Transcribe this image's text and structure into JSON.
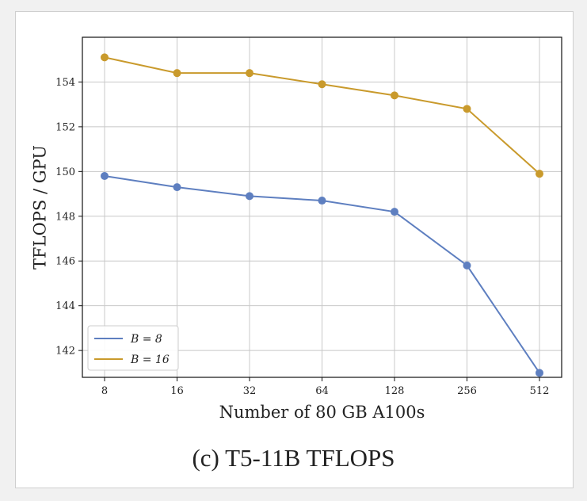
{
  "caption": "(c) T5-11B TFLOPS",
  "chart_data": {
    "type": "line",
    "xlabel": "Number of 80 GB A100s",
    "ylabel": "TFLOPS / GPU",
    "categories": [
      "8",
      "16",
      "32",
      "64",
      "128",
      "256",
      "512"
    ],
    "ylim": [
      140.8,
      156
    ],
    "yticks": [
      142,
      144,
      146,
      148,
      150,
      152,
      154
    ],
    "grid": true,
    "legend_position": "lower-left",
    "series": [
      {
        "name": "B = 8",
        "color": "#5e7fc0",
        "values": [
          149.8,
          149.3,
          148.9,
          148.7,
          148.2,
          145.8,
          141.0
        ]
      },
      {
        "name": "B = 16",
        "color": "#c99a2c",
        "values": [
          155.1,
          154.4,
          154.4,
          153.9,
          153.4,
          152.8,
          149.9
        ]
      }
    ]
  }
}
